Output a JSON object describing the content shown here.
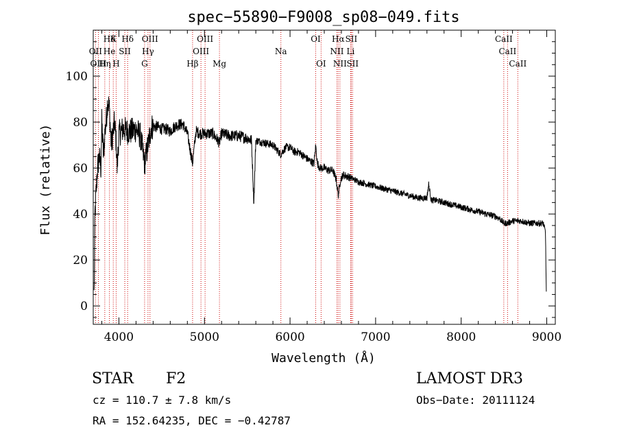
{
  "chart_data": {
    "type": "line",
    "title": "spec−55890−F9008_sp08−049.fits",
    "xlabel": "Wavelength (Å)",
    "ylabel": "Flux (relative)",
    "xlim": [
      3700,
      9100
    ],
    "ylim": [
      -8,
      120
    ],
    "x_ticks": [
      4000,
      5000,
      6000,
      7000,
      8000,
      9000
    ],
    "x_tick_labels": [
      "4000",
      "5000",
      "6000",
      "7000",
      "8000",
      "9000"
    ],
    "y_ticks": [
      0,
      20,
      40,
      60,
      80,
      100
    ],
    "y_tick_labels": [
      "0",
      "20",
      "40",
      "60",
      "80",
      "100"
    ],
    "grid": false,
    "series": [
      {
        "name": "spectrum",
        "anchors_x": [
          3710,
          3720,
          3735,
          3750,
          3770,
          3790,
          3800,
          3820,
          3835,
          3850,
          3870,
          3890,
          3910,
          3930,
          3950,
          3970,
          3980,
          4000,
          4050,
          4100,
          4150,
          4200,
          4250,
          4300,
          4340,
          4380,
          4450,
          4500,
          4550,
          4600,
          4650,
          4700,
          4750,
          4800,
          4861,
          4900,
          4950,
          5000,
          5100,
          5175,
          5200,
          5300,
          5400,
          5500,
          5550,
          5577,
          5600,
          5700,
          5800,
          5890,
          5950,
          6000,
          6050,
          6100,
          6200,
          6280,
          6300,
          6320,
          6350,
          6400,
          6450,
          6500,
          6540,
          6563,
          6590,
          6620,
          6700,
          6800,
          6900,
          7000,
          7100,
          7200,
          7300,
          7400,
          7500,
          7600,
          7620,
          7650,
          7700,
          7800,
          7900,
          8000,
          8100,
          8200,
          8300,
          8400,
          8450,
          8498,
          8542,
          8600,
          8662,
          8700,
          8800,
          8900,
          8960,
          8985,
          8995
        ],
        "anchors_y": [
          5,
          40,
          50,
          60,
          65,
          60,
          80,
          65,
          75,
          80,
          90,
          85,
          70,
          75,
          80,
          70,
          60,
          75,
          77,
          76,
          76,
          77,
          74,
          62,
          70,
          78,
          78,
          77,
          77,
          76,
          78,
          79,
          79,
          75,
          62,
          76,
          75,
          75,
          75,
          71,
          75,
          74,
          74,
          73,
          72,
          45,
          72,
          71,
          70,
          66,
          69,
          69,
          67,
          67,
          64,
          62,
          70,
          62,
          60,
          60,
          59,
          59,
          55,
          48,
          55,
          57,
          56,
          54,
          53,
          52,
          51,
          50,
          49,
          48,
          47,
          47,
          53,
          46,
          46,
          45,
          44,
          43,
          42,
          41,
          40,
          39,
          38,
          36,
          36,
          37,
          37,
          37,
          36,
          36,
          36,
          32,
          5
        ]
      }
    ],
    "line_labels": [
      {
        "text": "Hδ",
        "x": 3889,
        "row": 1
      },
      {
        "text": "K",
        "x": 3934,
        "row": 1
      },
      {
        "text": "Hδ",
        "x": 4102,
        "row": 1
      },
      {
        "text": "OIII",
        "x": 4363,
        "row": 1
      },
      {
        "text": "OIII",
        "x": 5007,
        "row": 1
      },
      {
        "text": "OI",
        "x": 6300,
        "row": 1
      },
      {
        "text": "Hα",
        "x": 6563,
        "row": 1
      },
      {
        "text": "SII",
        "x": 6716,
        "row": 1
      },
      {
        "text": "CaII",
        "x": 8498,
        "row": 1
      },
      {
        "text": "OII",
        "x": 3727,
        "row": 2
      },
      {
        "text": "He",
        "x": 3889,
        "row": 2
      },
      {
        "text": "SII",
        "x": 4069,
        "row": 2
      },
      {
        "text": "Hγ",
        "x": 4340,
        "row": 2
      },
      {
        "text": "OIII",
        "x": 4959,
        "row": 2
      },
      {
        "text": "Na",
        "x": 5893,
        "row": 2
      },
      {
        "text": "NII",
        "x": 6548,
        "row": 2
      },
      {
        "text": "Li",
        "x": 6708,
        "row": 2
      },
      {
        "text": "CaII",
        "x": 8542,
        "row": 2
      },
      {
        "text": "OIII",
        "x": 3760,
        "row": 3
      },
      {
        "text": "Hη",
        "x": 3835,
        "row": 3
      },
      {
        "text": "H",
        "x": 3968,
        "row": 3
      },
      {
        "text": "G",
        "x": 4300,
        "row": 3
      },
      {
        "text": "Hβ",
        "x": 4861,
        "row": 3
      },
      {
        "text": "Mg",
        "x": 5175,
        "row": 3
      },
      {
        "text": "OI",
        "x": 6363,
        "row": 3
      },
      {
        "text": "NII",
        "x": 6583,
        "row": 3
      },
      {
        "text": "SII",
        "x": 6731,
        "row": 3
      },
      {
        "text": "CaII",
        "x": 8662,
        "row": 3
      }
    ],
    "line_markers": [
      3727,
      3760,
      3835,
      3889,
      3934,
      3968,
      4069,
      4102,
      4300,
      4340,
      4363,
      4861,
      4959,
      5007,
      5175,
      5893,
      6300,
      6363,
      6548,
      6563,
      6583,
      6708,
      6716,
      6731,
      8498,
      8542,
      8662
    ],
    "marker_color": "#cc0000"
  },
  "info": {
    "object_class": "STAR",
    "subclass": "F2",
    "survey": "LAMOST DR3",
    "redshift": "cz = 110.7 ± 7.8 km/s",
    "obs_date": "Obs−Date: 20111124",
    "coords": "RA = 152.64235, DEC =  −0.42787"
  }
}
